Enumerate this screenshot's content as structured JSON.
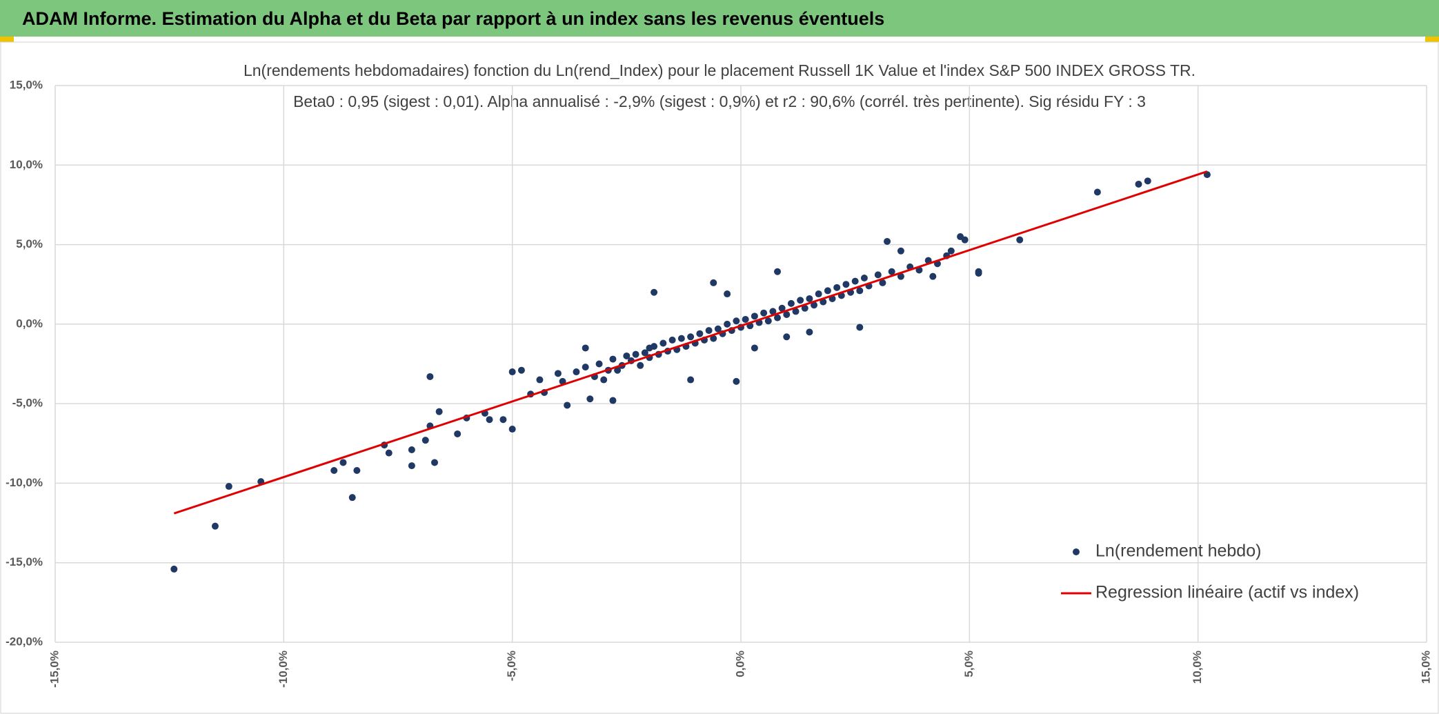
{
  "header": {
    "title": "ADAM Informe. Estimation du Alpha et du Beta par rapport à un index sans les revenus éventuels"
  },
  "chart_data": {
    "type": "scatter",
    "title": "Ln(rendements hebdomadaires) fonction du Ln(rend_Index) pour le placement Russell 1K Value et l'index S&P 500 INDEX GROSS TR.",
    "subtitle": "Beta0 : 0,95 (sigest : 0,01). Alpha annualisé : -2,9% (sigest : 0,9%) et r2 : 90,6% (corrél. très pertinente). Sig résidu FY : 3",
    "xlim": [
      -15,
      15
    ],
    "ylim": [
      -20,
      15
    ],
    "xticks": [
      {
        "value": -15,
        "label": "-15,0%"
      },
      {
        "value": -10,
        "label": "-10,0%"
      },
      {
        "value": -5,
        "label": "-5,0%"
      },
      {
        "value": 0,
        "label": "0,0%"
      },
      {
        "value": 5,
        "label": "5,0%"
      },
      {
        "value": 10,
        "label": "10,0%"
      },
      {
        "value": 15,
        "label": "15,0%"
      }
    ],
    "yticks": [
      {
        "value": -20,
        "label": "-20,0%"
      },
      {
        "value": -15,
        "label": "-15,0%"
      },
      {
        "value": -10,
        "label": "-10,0%"
      },
      {
        "value": -5,
        "label": "-5,0%"
      },
      {
        "value": 0,
        "label": "0,0%"
      },
      {
        "value": 5,
        "label": "5,0%"
      },
      {
        "value": 10,
        "label": "10,0%"
      },
      {
        "value": 15,
        "label": "15,0%"
      }
    ],
    "grid": true,
    "series": [
      {
        "name": "Ln(rendement hebdo)",
        "type": "scatter",
        "color": "#203864",
        "x": [
          -12.4,
          -11.5,
          -11.2,
          -10.5,
          -8.9,
          -8.7,
          -8.5,
          -8.4,
          -7.8,
          -7.7,
          -7.2,
          -7.2,
          -6.9,
          -6.8,
          -6.8,
          -6.7,
          -6.6,
          -6.2,
          -6.0,
          -5.6,
          -5.5,
          -5.2,
          -5.0,
          -4.8,
          -5.0,
          -4.6,
          -4.3,
          -4.0,
          -3.8,
          -3.3,
          -3.0,
          -2.7,
          -2.5,
          -2.0,
          -3.9,
          -3.6,
          -3.4,
          -3.2,
          -3.1,
          -2.9,
          -2.8,
          -2.6,
          -2.4,
          -2.3,
          -2.2,
          -2.1,
          -2.0,
          -1.9,
          -1.8,
          -1.7,
          -1.6,
          -1.5,
          -1.4,
          -1.3,
          -1.2,
          -1.1,
          -1.0,
          -0.9,
          -0.8,
          -0.7,
          -0.6,
          -0.5,
          -0.4,
          -0.3,
          -0.2,
          -0.1,
          0.0,
          0.1,
          0.2,
          0.3,
          0.4,
          0.5,
          0.6,
          0.7,
          0.8,
          0.9,
          1.0,
          1.1,
          1.2,
          1.3,
          1.4,
          1.5,
          1.6,
          1.7,
          1.8,
          1.9,
          2.0,
          2.1,
          2.2,
          2.3,
          2.4,
          2.5,
          2.6,
          2.7,
          2.8,
          3.0,
          3.1,
          3.3,
          3.5,
          3.7,
          3.9,
          4.1,
          4.3,
          4.5,
          -1.9,
          -0.6,
          -1.1,
          -0.1,
          0.3,
          0.8,
          1.5,
          -2.8,
          2.6,
          3.2,
          3.5,
          5.2,
          5.2,
          4.8,
          4.9,
          4.6,
          6.1,
          7.8,
          8.7,
          8.9,
          10.2,
          4.2,
          -0.3,
          1.0,
          -3.4,
          -4.4
        ],
        "values": [
          -15.4,
          -12.7,
          -10.2,
          -9.9,
          -9.2,
          -8.7,
          -10.9,
          -9.2,
          -7.6,
          -8.1,
          -8.9,
          -7.9,
          -7.3,
          -3.3,
          -6.4,
          -8.7,
          -5.5,
          -6.9,
          -5.9,
          -5.6,
          -6.0,
          -6.0,
          -3.0,
          -2.9,
          -6.6,
          -4.4,
          -4.3,
          -3.1,
          -5.1,
          -4.7,
          -3.5,
          -2.9,
          -2.0,
          -1.5,
          -3.6,
          -3.0,
          -2.7,
          -3.3,
          -2.5,
          -2.9,
          -2.2,
          -2.6,
          -2.3,
          -1.9,
          -2.6,
          -1.8,
          -2.1,
          -1.4,
          -1.9,
          -1.2,
          -1.7,
          -1.0,
          -1.6,
          -0.9,
          -1.4,
          -0.8,
          -1.2,
          -0.6,
          -1.0,
          -0.4,
          -0.9,
          -0.3,
          -0.6,
          0.0,
          -0.4,
          0.2,
          -0.2,
          0.3,
          -0.1,
          0.5,
          0.1,
          0.7,
          0.2,
          0.8,
          0.4,
          1.0,
          0.6,
          1.3,
          0.8,
          1.5,
          1.0,
          1.6,
          1.2,
          1.9,
          1.4,
          2.1,
          1.6,
          2.3,
          1.8,
          2.5,
          2.0,
          2.7,
          2.1,
          2.9,
          2.4,
          3.1,
          2.6,
          3.3,
          3.0,
          3.6,
          3.4,
          4.0,
          3.8,
          4.3,
          2.0,
          2.6,
          -3.5,
          -3.6,
          -1.5,
          3.3,
          -0.5,
          -4.8,
          -0.2,
          5.2,
          4.6,
          3.2,
          3.3,
          5.5,
          5.3,
          4.6,
          5.3,
          8.3,
          8.8,
          9.0,
          9.4,
          3.0,
          1.9,
          -0.8,
          -1.5,
          -3.5
        ]
      },
      {
        "name": "Regression linéaire (actif vs index)",
        "type": "line",
        "color": "#e00000",
        "x": [
          -12.4,
          10.2
        ],
        "values": [
          -11.9,
          9.6
        ]
      }
    ]
  }
}
